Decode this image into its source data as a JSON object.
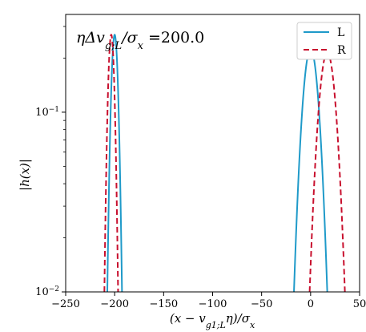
{
  "chart_data": {
    "type": "line",
    "title": "",
    "annotation": "ηΔv_{g;L}/σ_x =200.0",
    "annotation_parts": {
      "lead": "ηΔv",
      "sub": "g;L",
      "mid": "/σ",
      "sub2": "x",
      "tail": " =200.0"
    },
    "xlabel": "(x − v_{g1;L}η)/σ_x",
    "xlabel_parts": {
      "lead": "(x − v",
      "sub": "g1;L",
      "mid": "η)/σ",
      "sub2": "x"
    },
    "ylabel": "|h(x)|",
    "xlim": [
      -250,
      50
    ],
    "ylim": [
      0.01,
      0.35
    ],
    "yscale": "log",
    "grid": false,
    "legend_position": "top-right",
    "x_ticks": [
      {
        "value": -250,
        "label": "−250"
      },
      {
        "value": -200,
        "label": "−200"
      },
      {
        "value": -150,
        "label": "−150"
      },
      {
        "value": -100,
        "label": "−100"
      },
      {
        "value": -50,
        "label": "−50"
      },
      {
        "value": 0,
        "label": "0"
      },
      {
        "value": 50,
        "label": "50"
      }
    ],
    "y_ticks": [
      {
        "value": 0.01,
        "base": "10",
        "exp": "−2"
      },
      {
        "value": 0.1,
        "base": "10",
        "exp": "−1"
      }
    ],
    "series": [
      {
        "name": "L",
        "color": "#1f9ac9",
        "dash": "solid",
        "peaks": [
          {
            "center": -200,
            "amplitude": 0.27,
            "half_width_at_ylim": 7.5
          },
          {
            "center": 0,
            "amplitude": 0.225,
            "half_width_at_ylim": 17
          }
        ]
      },
      {
        "name": "R",
        "color": "#c8102e",
        "dash": "dashed",
        "peaks": [
          {
            "center": -203.5,
            "amplitude": 0.27,
            "half_width_at_ylim": 7
          },
          {
            "center": 17,
            "amplitude": 0.215,
            "half_width_at_ylim": 18
          }
        ]
      }
    ]
  }
}
